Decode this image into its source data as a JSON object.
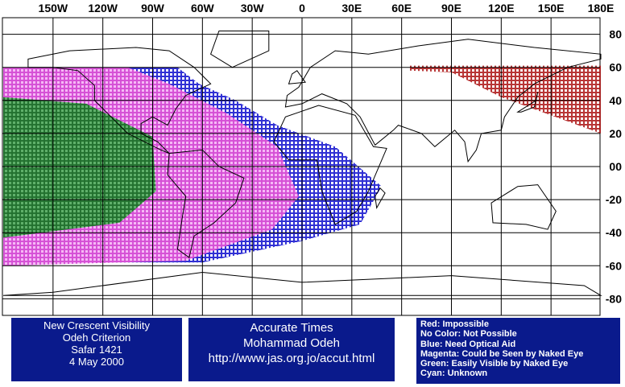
{
  "map": {
    "lon_labels": [
      "150W",
      "120W",
      "90W",
      "60W",
      "30W",
      "0",
      "30E",
      "60E",
      "90E",
      "120E",
      "150E",
      "180E"
    ],
    "lat_labels": [
      "80",
      "60",
      "40",
      "20",
      "00",
      "-20",
      "-40",
      "-60",
      "-80"
    ]
  },
  "info_left": {
    "lines": [
      "New Crescent Visibility",
      "Odeh Criterion",
      "Safar 1421",
      "4 May 2000"
    ]
  },
  "info_center": {
    "lines": [
      "Accurate Times",
      "Mohammad Odeh",
      "http://www.jas.org.jo/accut.html"
    ]
  },
  "legend": {
    "lines": [
      "Red: Impossible",
      "No Color: Not Possible",
      "Blue: Need Optical Aid",
      "Magenta: Could be Seen by Naked Eye",
      "Green: Easily Visible by Naked Eye",
      "Cyan: Unknown"
    ]
  }
}
